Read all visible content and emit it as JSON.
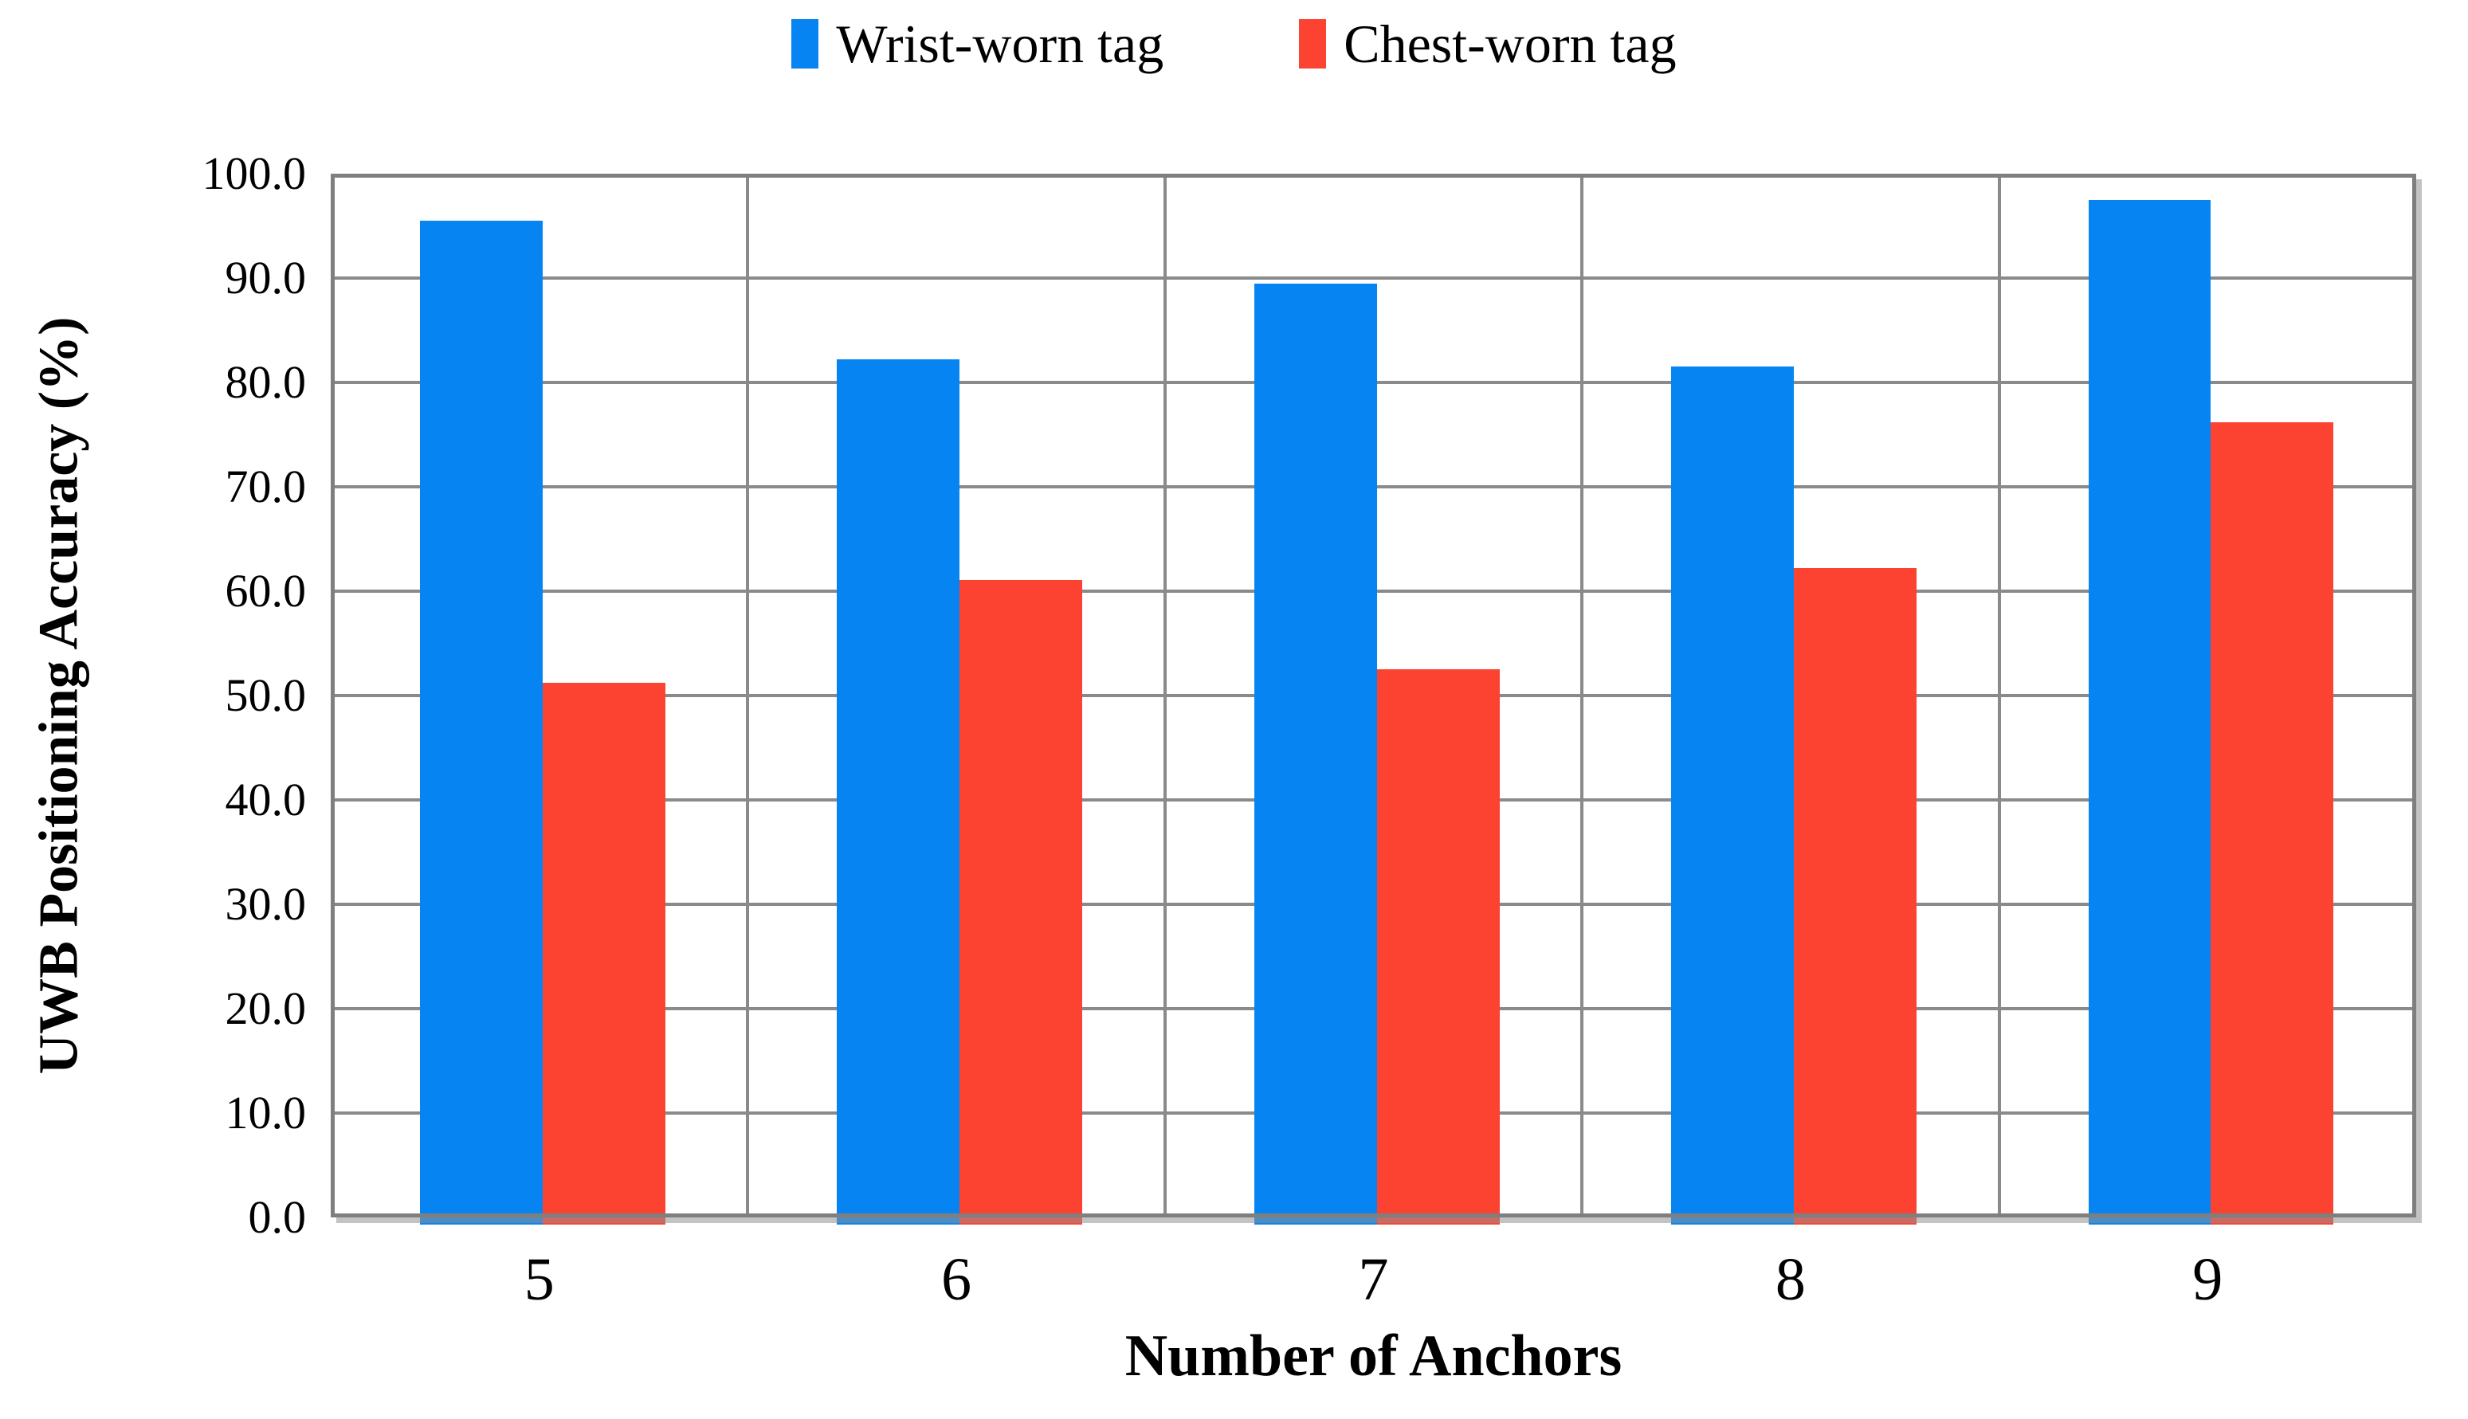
{
  "chart_data": {
    "type": "bar",
    "categories": [
      "5",
      "6",
      "7",
      "8",
      "9"
    ],
    "series": [
      {
        "name": "Wrist-worn tag",
        "color": "#0685F2",
        "values": [
          95.5,
          82.2,
          89.5,
          81.5,
          97.5
        ]
      },
      {
        "name": "Chest-worn tag",
        "color": "#FC4332",
        "values": [
          51.2,
          61.1,
          52.5,
          62.2,
          76.2
        ]
      }
    ],
    "xlabel": "Number of Anchors",
    "ylabel": "UWB Positioning Accuracy (%)",
    "ylim": [
      0,
      100
    ],
    "ytick_step": 10,
    "ytick_labels": [
      "0.0",
      "10.0",
      "20.0",
      "30.0",
      "40.0",
      "50.0",
      "60.0",
      "70.0",
      "80.0",
      "90.0",
      "100.0"
    ],
    "grid": true,
    "legend_position": "top",
    "colors": {
      "grid": "#8A8A8A",
      "plot_border": "#7F7F7F",
      "text": "#000000",
      "background": "#FFFFFF"
    }
  }
}
